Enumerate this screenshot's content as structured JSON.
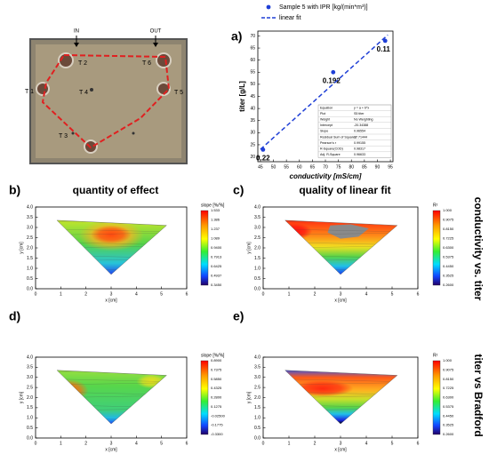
{
  "panel_labels": [
    "a)",
    "b)",
    "c)",
    "d)",
    "e)"
  ],
  "column_titles": [
    "quantity of effect",
    "quality of linear fit"
  ],
  "row_titles": [
    "conductivity vs. titer",
    "titer vs Bradford"
  ],
  "photo": {
    "labels": [
      "IN",
      "OUT",
      "T 2",
      "T 6",
      "T 1",
      "T 4",
      "T 5",
      "T 3"
    ]
  },
  "chart_data": [
    {
      "type": "scatter",
      "xlabel": "conductivity [mS/cm]",
      "ylabel": "titer [g/L]",
      "xlim": [
        44,
        96
      ],
      "xticks": [
        45,
        50,
        55,
        60,
        65,
        70,
        75,
        80,
        85,
        90,
        95
      ],
      "ylim": [
        18,
        72
      ],
      "yticks": [
        20,
        25,
        30,
        35,
        40,
        45,
        50,
        55,
        60,
        65,
        70
      ],
      "series": [
        {
          "name": "Sample 5 with IPR [kg/(min*m³)]",
          "color": "#1f3fd6",
          "x": [
            46,
            73,
            93
          ],
          "values": [
            23,
            55,
            68
          ],
          "point_labels": [
            "0.22",
            "0.192",
            "0.11"
          ]
        },
        {
          "name": "linear fit",
          "color": "#1f3fd6",
          "dash": true,
          "x": [
            45,
            94
          ],
          "values": [
            23.1,
            70.4
          ]
        }
      ],
      "stats": [
        [
          "Equation",
          "y = a + b*x"
        ],
        [
          "Plot",
          "S5 titer"
        ],
        [
          "Weight",
          "No Weighting"
        ],
        [
          "Intercept",
          "-20.34388"
        ],
        [
          "Slope",
          "0.96554"
        ],
        [
          "Residual Sum of Squares",
          "17.71444"
        ],
        [
          "Pearson's r",
          "0.99155"
        ],
        [
          "R-Square(COD)",
          "0.98317"
        ],
        [
          "Adj. R-Square",
          "0.96633"
        ]
      ]
    },
    {
      "type": "contour",
      "colorbar_title": "slope [%/%]",
      "colorbar_labels": [
        "1.533",
        "1.386",
        "1.237",
        "1.089",
        "0.9400",
        "0.7913",
        "0.6425",
        "0.4937",
        "0.3450"
      ],
      "xlabel": "x [cm]",
      "ylabel": "y [cm]",
      "xlim": [
        0,
        6
      ],
      "xticks": [
        0,
        1,
        2,
        3,
        4,
        5,
        6
      ],
      "ylim": [
        0,
        4
      ],
      "yticks": [
        {
          "value": 0,
          "label": "0.0"
        },
        0.5,
        {
          "value": 1,
          "label": "1.0"
        },
        1.5,
        {
          "value": 2,
          "label": "2.0"
        },
        2.5,
        {
          "value": 3,
          "label": "3.0"
        },
        3.5,
        {
          "value": 4,
          "label": "4.0"
        }
      ]
    },
    {
      "type": "contour",
      "colorbar_title": "R²",
      "colorbar_labels": [
        "1.000",
        "0.9075",
        "0.8150",
        "0.7225",
        "0.6300",
        "0.5375",
        "0.4450",
        "0.3525",
        "0.2600"
      ],
      "xlabel": "x [cm]",
      "ylabel": "y [cm]",
      "xlim": [
        0,
        6
      ],
      "xticks": [
        0,
        1,
        2,
        3,
        4,
        5,
        6
      ],
      "ylim": [
        0,
        4
      ],
      "yticks": [
        {
          "value": 0,
          "label": "0.0"
        },
        0.5,
        {
          "value": 1,
          "label": "1.0"
        },
        1.5,
        {
          "value": 2,
          "label": "2.0"
        },
        2.5,
        {
          "value": 3,
          "label": "3.0"
        },
        3.5,
        {
          "value": 4,
          "label": "4.0"
        }
      ]
    },
    {
      "type": "contour",
      "colorbar_title": "slope [%/%]",
      "colorbar_labels": [
        "0.8900",
        "0.7375",
        "0.5850",
        "0.4325",
        "0.2800",
        "0.1275",
        "-0.02500",
        "-0.1775",
        "-0.3300"
      ],
      "xlabel": "x [cm]",
      "ylabel": "y [cm]",
      "xlim": [
        0,
        6
      ],
      "xticks": [
        0,
        1,
        2,
        3,
        4,
        5,
        6
      ],
      "ylim": [
        0,
        4
      ],
      "yticks": [
        {
          "value": 0,
          "label": "0.0"
        },
        0.5,
        {
          "value": 1,
          "label": "1.0"
        },
        1.5,
        {
          "value": 2,
          "label": "2.0"
        },
        2.5,
        {
          "value": 3,
          "label": "3.0"
        },
        3.5,
        {
          "value": 4,
          "label": "4.0"
        }
      ]
    },
    {
      "type": "contour",
      "colorbar_title": "R²",
      "colorbar_labels": [
        "1.000",
        "0.9075",
        "0.8150",
        "0.7225",
        "0.6300",
        "0.5375",
        "0.4450",
        "0.3525",
        "0.2600"
      ],
      "xlabel": "x [cm]",
      "ylabel": "y [cm]",
      "xlim": [
        0,
        6
      ],
      "xticks": [
        0,
        1,
        2,
        3,
        4,
        5,
        6
      ],
      "ylim": [
        0,
        4
      ],
      "yticks": [
        {
          "value": 0,
          "label": "0.0"
        },
        0.5,
        {
          "value": 1,
          "label": "1.0"
        },
        1.5,
        {
          "value": 2,
          "label": "2.0"
        },
        2.5,
        {
          "value": 3,
          "label": "3.0"
        },
        3.5,
        {
          "value": 4,
          "label": "4.0"
        }
      ]
    }
  ]
}
